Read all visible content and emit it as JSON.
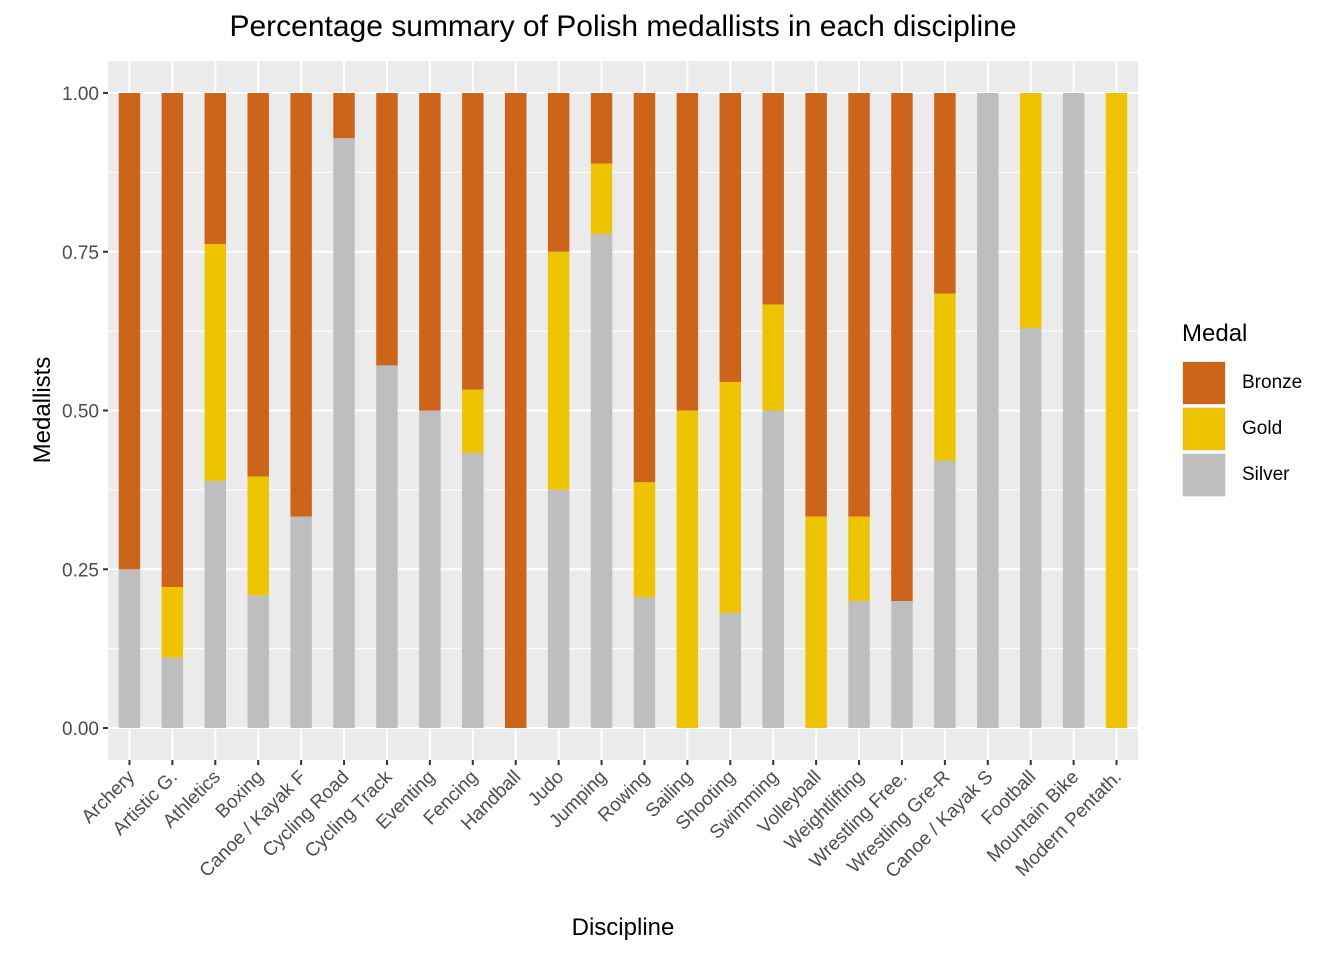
{
  "chart_data": {
    "type": "bar",
    "stacked": true,
    "title": "Percentage summary of Polish medallists in each discipline",
    "xlabel": "Discipline",
    "ylabel": "Medallists",
    "ylim": [
      0,
      1
    ],
    "yticks": [
      "0.00",
      "0.25",
      "0.50",
      "0.75",
      "1.00"
    ],
    "grid": true,
    "legend_position": "right",
    "legend_title": "Medal",
    "categories": [
      "Archery",
      "Artistic G.",
      "Athletics",
      "Boxing",
      "Canoe / Kayak F",
      "Cycling Road",
      "Cycling Track",
      "Eventing",
      "Fencing",
      "Handball",
      "Judo",
      "Jumping",
      "Rowing",
      "Sailing",
      "Shooting",
      "Swimming",
      "Volleyball",
      "Weightlifting",
      "Wrestling Free.",
      "Wrestling Gre-R",
      "Canoe / Kayak S",
      "Football",
      "Mountain Bike",
      "Modern Pentath."
    ],
    "series": [
      {
        "name": "Bronze",
        "color": "#cc6519",
        "values": [
          0.75,
          0.778,
          0.238,
          0.604,
          0.667,
          0.071,
          0.429,
          0.5,
          0.467,
          1.0,
          0.25,
          0.111,
          0.613,
          0.5,
          0.455,
          0.333,
          0.667,
          0.667,
          0.8,
          0.316,
          0,
          0,
          0,
          0
        ]
      },
      {
        "name": "Gold",
        "color": "#eec400",
        "values": [
          0,
          0.111,
          0.373,
          0.187,
          0,
          0,
          0,
          0,
          0.1,
          0,
          0.375,
          0.111,
          0.181,
          0.5,
          0.364,
          0.167,
          0.333,
          0.133,
          0,
          0.263,
          0,
          0.37,
          0,
          1.0
        ]
      },
      {
        "name": "Silver",
        "color": "#bebebe",
        "values": [
          0.25,
          0.111,
          0.389,
          0.209,
          0.333,
          0.929,
          0.571,
          0.5,
          0.433,
          0,
          0.375,
          0.778,
          0.206,
          0,
          0.181,
          0.5,
          0,
          0.2,
          0.2,
          0.421,
          1.0,
          0.63,
          1.0,
          0
        ]
      }
    ]
  }
}
